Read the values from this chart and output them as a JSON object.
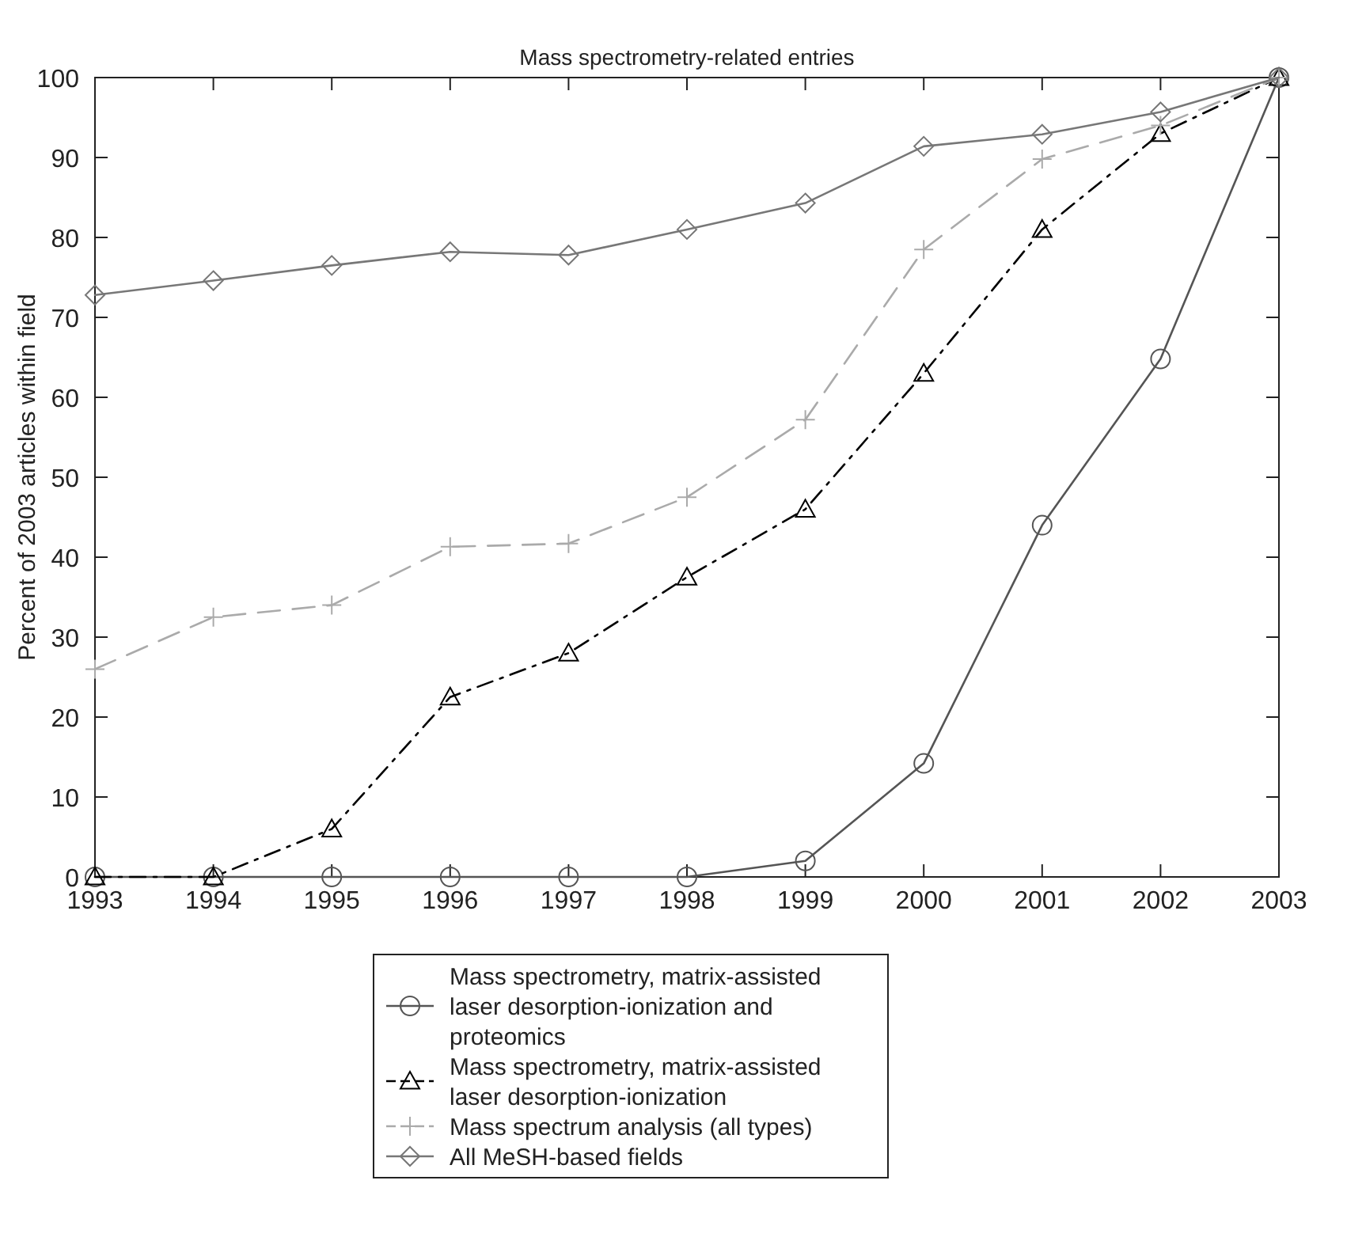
{
  "chart_data": {
    "type": "line",
    "title": "Mass spectrometry-related entries",
    "ylabel": "Percent of 2003 articles within field",
    "x": [
      1993,
      1994,
      1995,
      1996,
      1997,
      1998,
      1999,
      2000,
      2001,
      2002,
      2003
    ],
    "xlim": [
      1993,
      2003
    ],
    "xticks": [
      1993,
      1994,
      1995,
      1996,
      1997,
      1998,
      1999,
      2000,
      2001,
      2002,
      2003
    ],
    "ylim": [
      0,
      100
    ],
    "yticks": [
      0,
      10,
      20,
      30,
      40,
      50,
      60,
      70,
      80,
      90,
      100
    ],
    "grid": false,
    "legend": "bottom",
    "series": [
      {
        "name": "Mass spectrometry, matrix-assisted laser desorption-ionization and proteomics",
        "color": "#555555",
        "marker": "circle",
        "line_style": "solid",
        "values": [
          0,
          0,
          0,
          0,
          0,
          0,
          2,
          14.2,
          44,
          64.8,
          100
        ]
      },
      {
        "name": "Mass spectrometry, matrix-assisted laser desorption-ionization",
        "color": "#000000",
        "marker": "triangle",
        "line_style": "dashdot",
        "values": [
          0,
          0,
          6,
          22.5,
          28,
          37.5,
          46,
          63,
          81,
          93,
          100
        ]
      },
      {
        "name": "Mass spectrum analysis (all types)",
        "color": "#aaaaaa",
        "marker": "cross",
        "line_style": "dashed",
        "values": [
          26,
          32.5,
          34,
          41.3,
          41.7,
          47.5,
          57.2,
          78.5,
          89.8,
          94,
          100
        ]
      },
      {
        "name": "All MeSH-based fields",
        "color": "#777777",
        "marker": "diamond",
        "line_style": "solid",
        "values": [
          72.8,
          74.6,
          76.5,
          78.2,
          77.8,
          81,
          84.3,
          91.4,
          92.9,
          95.7,
          100
        ]
      }
    ]
  }
}
